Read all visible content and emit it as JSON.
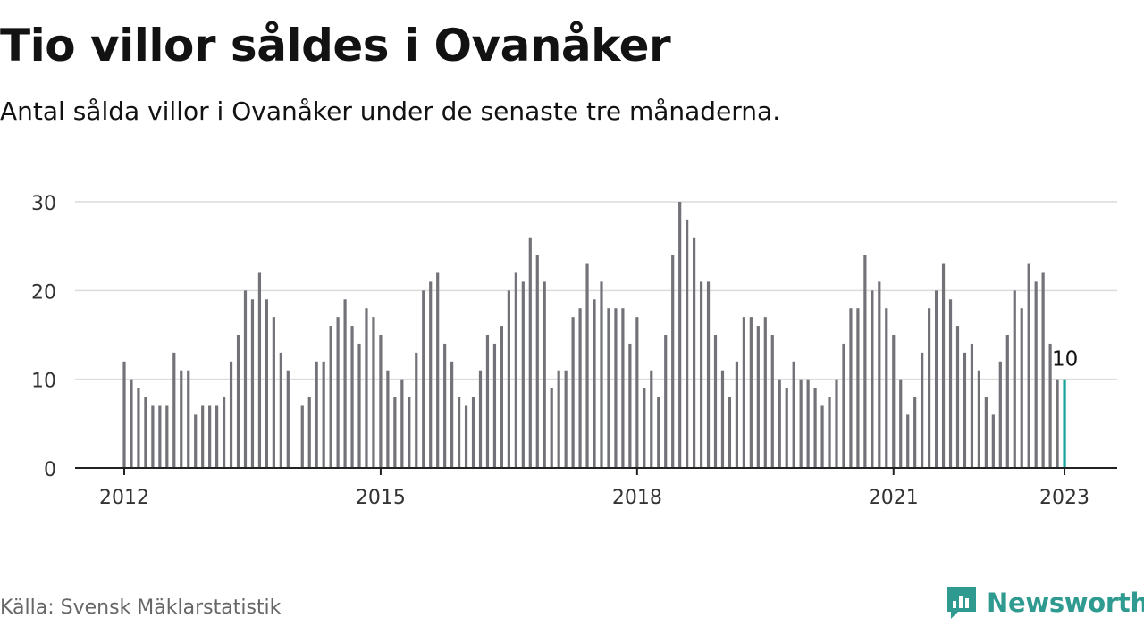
{
  "title": "Tio villor såldes i Ovanåker",
  "subtitle": "Antal sålda villor i Ovanåker under de senaste tre månaderna.",
  "source": "Källa: Svensk Mäklarstatistik",
  "brand": {
    "name": "Newsworthy",
    "icon": "newsworthy-logo-icon",
    "color": "#2f9b90"
  },
  "chart_data": {
    "type": "bar",
    "x_start": "2012-01",
    "x_end": "2023-01",
    "x_ticks": [
      "2012",
      "2015",
      "2018",
      "2021",
      "2023"
    ],
    "y_ticks": [
      "0",
      "10",
      "20",
      "30"
    ],
    "ylim": [
      0,
      30
    ],
    "grid": true,
    "bar_color": "#737278",
    "highlight_color": "#18a39a",
    "highlight_label": "10",
    "values": [
      12,
      10,
      9,
      8,
      7,
      7,
      7,
      13,
      11,
      11,
      6,
      7,
      7,
      7,
      8,
      12,
      15,
      20,
      19,
      22,
      19,
      17,
      13,
      11,
      null,
      7,
      8,
      12,
      12,
      16,
      17,
      19,
      16,
      14,
      18,
      17,
      15,
      11,
      8,
      10,
      8,
      13,
      20,
      21,
      22,
      14,
      12,
      8,
      7,
      8,
      11,
      15,
      14,
      16,
      20,
      22,
      21,
      26,
      24,
      21,
      9,
      11,
      11,
      17,
      18,
      23,
      19,
      21,
      18,
      18,
      18,
      14,
      17,
      9,
      11,
      8,
      15,
      24,
      30,
      28,
      26,
      21,
      21,
      15,
      11,
      8,
      12,
      17,
      17,
      16,
      17,
      15,
      10,
      9,
      12,
      10,
      10,
      9,
      7,
      8,
      10,
      14,
      18,
      18,
      24,
      20,
      21,
      18,
      15,
      10,
      6,
      8,
      13,
      18,
      20,
      23,
      19,
      16,
      13,
      14,
      11,
      8,
      6,
      12,
      15,
      20,
      18,
      23,
      21,
      22,
      14,
      10,
      10
    ]
  }
}
